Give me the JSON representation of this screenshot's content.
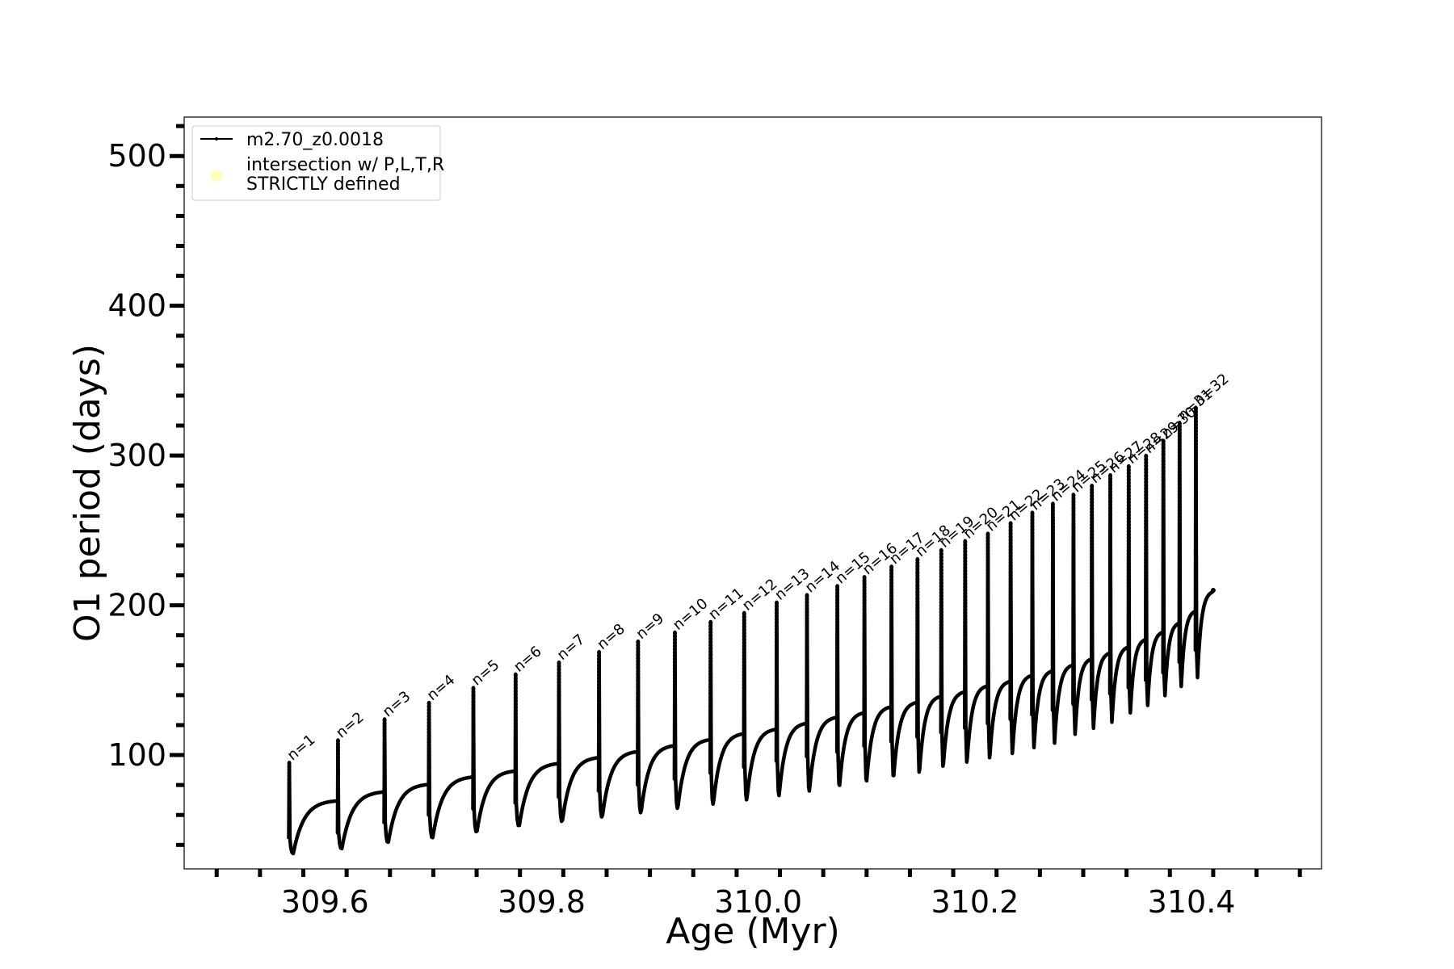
{
  "chart_data": {
    "type": "line",
    "title": "",
    "xlabel": "Age (Myr)",
    "ylabel": "O1 period (days)",
    "xlim": [
      309.47,
      310.52
    ],
    "ylim": [
      24,
      526
    ],
    "xticks": [
      309.6,
      309.8,
      310.0,
      310.2,
      310.4
    ],
    "xtick_labels": [
      "309.6",
      "309.8",
      "310.0",
      "310.2",
      "310.4"
    ],
    "yticks": [
      100,
      200,
      300,
      400,
      500
    ],
    "ytick_labels": [
      "100",
      "200",
      "300",
      "400",
      "500"
    ],
    "grid": false,
    "legend_position": "top-left",
    "legend": [
      {
        "label": "m2.70_z0.0018",
        "marker": "line-dot",
        "color": "#000000"
      },
      {
        "label": "intersection w/ P,L,T,R\nSTRICTLY defined",
        "marker": "circle",
        "color": "#ffffb3"
      }
    ],
    "series": [
      {
        "name": "m2.70_z0.0018",
        "color": "#000000",
        "x_end": 310.42,
        "y_end": 210,
        "pulses": [
          {
            "n": 1,
            "label": "n=1",
            "x": 309.567,
            "peak": 95,
            "base": 70,
            "min": 34,
            "bottom": 44
          },
          {
            "n": 2,
            "label": "n=2",
            "x": 309.612,
            "peak": 110,
            "base": 76,
            "min": 37,
            "bottom": 48
          },
          {
            "n": 3,
            "label": "n=3",
            "x": 309.655,
            "peak": 124,
            "base": 81,
            "min": 41,
            "bottom": 55
          },
          {
            "n": 4,
            "label": "n=4",
            "x": 309.696,
            "peak": 135,
            "base": 86,
            "min": 44,
            "bottom": 60
          },
          {
            "n": 5,
            "label": "n=5",
            "x": 309.737,
            "peak": 145,
            "base": 90,
            "min": 48,
            "bottom": 64
          },
          {
            "n": 6,
            "label": "n=6",
            "x": 309.776,
            "peak": 154,
            "base": 95,
            "min": 52,
            "bottom": 68
          },
          {
            "n": 7,
            "label": "n=7",
            "x": 309.816,
            "peak": 162,
            "base": 99,
            "min": 55,
            "bottom": 72
          },
          {
            "n": 8,
            "label": "n=8",
            "x": 309.853,
            "peak": 169,
            "base": 103,
            "min": 58,
            "bottom": 76
          },
          {
            "n": 9,
            "label": "n=9",
            "x": 309.889,
            "peak": 176,
            "base": 107,
            "min": 61,
            "bottom": 80
          },
          {
            "n": 10,
            "label": "n=10",
            "x": 309.923,
            "peak": 182,
            "base": 111,
            "min": 64,
            "bottom": 84
          },
          {
            "n": 11,
            "label": "n=11",
            "x": 309.956,
            "peak": 189,
            "base": 115,
            "min": 67,
            "bottom": 88
          },
          {
            "n": 12,
            "label": "n=12",
            "x": 309.987,
            "peak": 195,
            "base": 118,
            "min": 70,
            "bottom": 92
          },
          {
            "n": 13,
            "label": "n=13",
            "x": 310.017,
            "peak": 202,
            "base": 122,
            "min": 73,
            "bottom": 96
          },
          {
            "n": 14,
            "label": "n=14",
            "x": 310.045,
            "peak": 207,
            "base": 126,
            "min": 76,
            "bottom": 99
          },
          {
            "n": 15,
            "label": "n=15",
            "x": 310.073,
            "peak": 213,
            "base": 129,
            "min": 79,
            "bottom": 102
          },
          {
            "n": 16,
            "label": "n=16",
            "x": 310.098,
            "peak": 219,
            "base": 133,
            "min": 82,
            "bottom": 106
          },
          {
            "n": 17,
            "label": "n=17",
            "x": 310.123,
            "peak": 226,
            "base": 136,
            "min": 85,
            "bottom": 109
          },
          {
            "n": 18,
            "label": "n=18",
            "x": 310.147,
            "peak": 231,
            "base": 140,
            "min": 88,
            "bottom": 112
          },
          {
            "n": 19,
            "label": "n=19",
            "x": 310.169,
            "peak": 237,
            "base": 143,
            "min": 92,
            "bottom": 115
          },
          {
            "n": 20,
            "label": "n=20",
            "x": 310.191,
            "peak": 243,
            "base": 147,
            "min": 95,
            "bottom": 118
          },
          {
            "n": 21,
            "label": "n=21",
            "x": 310.212,
            "peak": 248,
            "base": 150,
            "min": 98,
            "bottom": 121
          },
          {
            "n": 22,
            "label": "n=22",
            "x": 310.233,
            "peak": 255,
            "base": 154,
            "min": 101,
            "bottom": 124
          },
          {
            "n": 23,
            "label": "n=23",
            "x": 310.253,
            "peak": 262,
            "base": 157,
            "min": 105,
            "bottom": 127
          },
          {
            "n": 24,
            "label": "n=24",
            "x": 310.272,
            "peak": 268,
            "base": 161,
            "min": 108,
            "bottom": 130
          },
          {
            "n": 25,
            "label": "n=25",
            "x": 310.291,
            "peak": 274,
            "base": 165,
            "min": 112,
            "bottom": 134
          },
          {
            "n": 26,
            "label": "n=26",
            "x": 310.308,
            "peak": 280,
            "base": 169,
            "min": 116,
            "bottom": 137
          },
          {
            "n": 27,
            "label": "n=27",
            "x": 310.325,
            "peak": 287,
            "base": 173,
            "min": 120,
            "bottom": 141
          },
          {
            "n": 28,
            "label": "n=28",
            "x": 310.342,
            "peak": 293,
            "base": 178,
            "min": 125,
            "bottom": 145
          },
          {
            "n": 29,
            "label": "n=29",
            "x": 310.358,
            "peak": 300,
            "base": 183,
            "min": 130,
            "bottom": 150
          },
          {
            "n": 30,
            "label": "n=30",
            "x": 310.374,
            "peak": 310,
            "base": 189,
            "min": 135,
            "bottom": 155
          },
          {
            "n": 31,
            "label": "n=31",
            "x": 310.389,
            "peak": 322,
            "base": 197,
            "min": 141,
            "bottom": 162
          },
          {
            "n": 32,
            "label": "n=32",
            "x": 310.404,
            "peak": 332,
            "base": 205,
            "min": 148,
            "bottom": 170
          }
        ]
      }
    ]
  }
}
